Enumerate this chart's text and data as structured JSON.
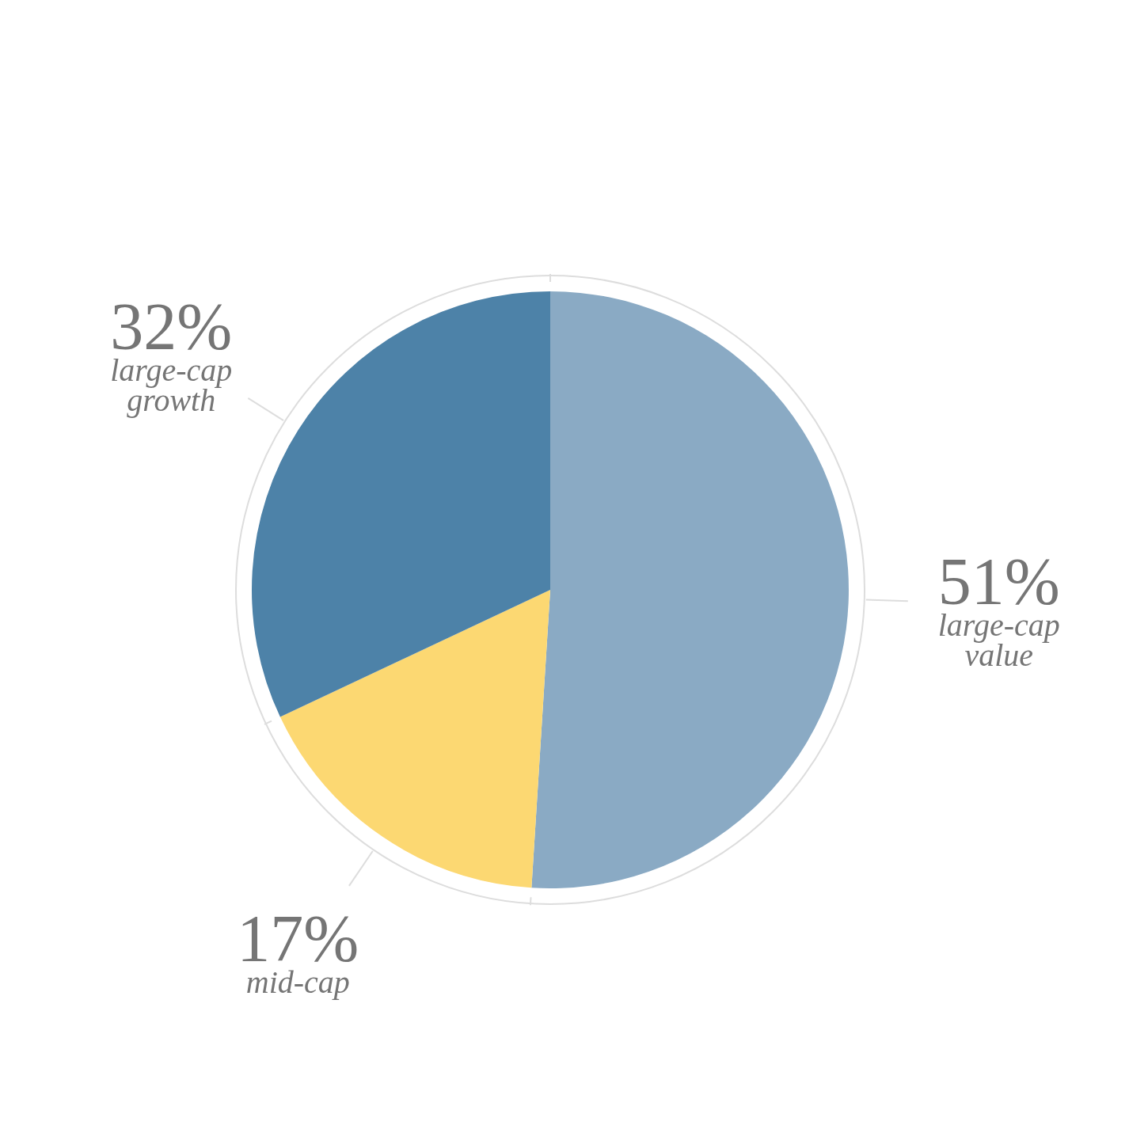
{
  "chart_data": {
    "type": "pie",
    "categories": [
      "large-cap value",
      "mid-cap",
      "large-cap growth"
    ],
    "values": [
      51,
      17,
      32
    ],
    "colors": [
      "#8aaac4",
      "#fcd872",
      "#4d82a8"
    ],
    "value_labels": [
      "51%",
      "17%",
      "32%"
    ],
    "legend": false
  }
}
